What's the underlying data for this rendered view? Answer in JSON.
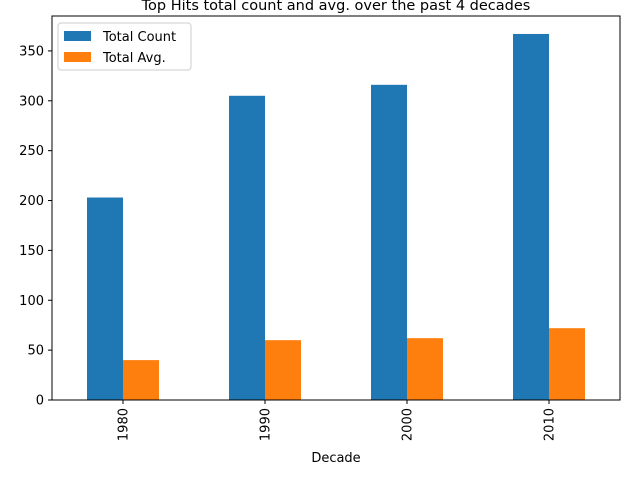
{
  "chart_data": {
    "type": "bar",
    "title": "Top Hits total count and avg. over the past 4 decades",
    "xlabel": "Decade",
    "ylabel": "",
    "categories": [
      "1980",
      "1990",
      "2000",
      "2010"
    ],
    "series": [
      {
        "name": "Total Count",
        "values": [
          203,
          305,
          316,
          367
        ],
        "color": "#1f77b4"
      },
      {
        "name": "Total Avg.",
        "values": [
          40,
          60,
          62,
          72
        ],
        "color": "#ff7f0e"
      }
    ],
    "ylim": [
      0,
      385
    ],
    "yticks": [
      "0",
      "50",
      "100",
      "150",
      "200",
      "250",
      "300",
      "350"
    ],
    "grid": false,
    "legend_position": "top-left"
  }
}
